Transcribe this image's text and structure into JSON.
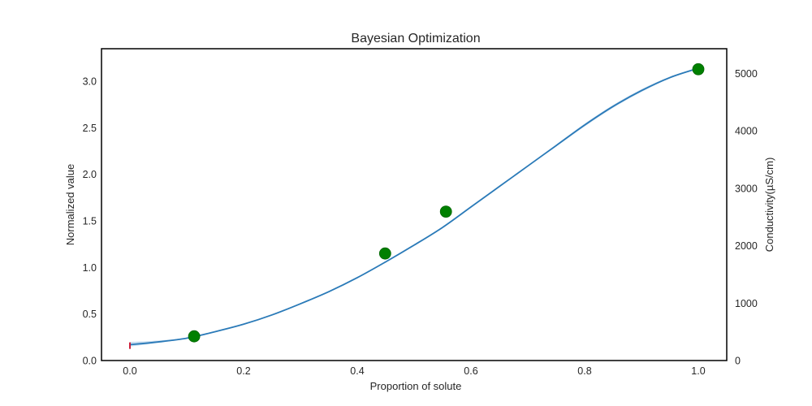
{
  "chart_data": {
    "type": "line",
    "title": "Bayesian Optimization",
    "xlabel": "Proportion of solute",
    "ylabel": "Normalized value",
    "y2label": "Conductivity(µS/cm)",
    "xlim": [
      -0.05,
      1.05
    ],
    "ylim": [
      0,
      3.35
    ],
    "y2lim": [
      0,
      5430
    ],
    "x_ticks": [
      0.0,
      0.2,
      0.4,
      0.6,
      0.8,
      1.0
    ],
    "x_tick_labels": [
      "0.0",
      "0.2",
      "0.4",
      "0.6",
      "0.8",
      "1.0"
    ],
    "y_ticks": [
      0.0,
      0.5,
      1.0,
      1.5,
      2.0,
      2.5,
      3.0
    ],
    "y_tick_labels": [
      "0.0",
      "0.5",
      "1.0",
      "1.5",
      "2.0",
      "2.5",
      "3.0"
    ],
    "y2_ticks": [
      0,
      1000,
      2000,
      3000,
      4000,
      5000
    ],
    "y2_tick_labels": [
      "0",
      "1000",
      "2000",
      "3000",
      "4000",
      "5000"
    ],
    "grid": false,
    "series": [
      {
        "kind": "mean",
        "color": "#2a7ab8",
        "x": [
          0.0,
          0.05,
          0.1,
          0.15,
          0.2,
          0.25,
          0.3,
          0.35,
          0.4,
          0.45,
          0.5,
          0.55,
          0.6,
          0.65,
          0.7,
          0.75,
          0.8,
          0.85,
          0.9,
          0.95,
          1.0
        ],
        "y": [
          0.17,
          0.2,
          0.24,
          0.31,
          0.39,
          0.49,
          0.61,
          0.74,
          0.89,
          1.06,
          1.24,
          1.43,
          1.65,
          1.87,
          2.09,
          2.31,
          2.53,
          2.73,
          2.9,
          3.04,
          3.14
        ]
      },
      {
        "kind": "confidence-band",
        "color": "#a6c8e6",
        "x": [
          0.0,
          0.05,
          0.1,
          0.15,
          0.2,
          0.25,
          0.3,
          0.35,
          0.4,
          0.45,
          0.5,
          0.55,
          0.6,
          0.65,
          0.7,
          0.75,
          0.8,
          0.85,
          0.9,
          0.95,
          1.0
        ],
        "lower": [
          0.15,
          0.19,
          0.235,
          0.305,
          0.385,
          0.485,
          0.605,
          0.735,
          0.885,
          1.055,
          1.235,
          1.425,
          1.645,
          1.865,
          2.085,
          2.3,
          2.515,
          2.715,
          2.885,
          3.03,
          3.135
        ],
        "upper": [
          0.2,
          0.215,
          0.245,
          0.315,
          0.395,
          0.495,
          0.615,
          0.745,
          0.895,
          1.065,
          1.245,
          1.435,
          1.655,
          1.875,
          2.095,
          2.32,
          2.545,
          2.745,
          2.915,
          3.05,
          3.145
        ]
      },
      {
        "kind": "observations",
        "color": "#008000",
        "x": [
          0.113,
          0.449,
          0.556,
          1.0
        ],
        "y": [
          0.26,
          1.15,
          1.6,
          3.13
        ]
      }
    ],
    "annotations": [
      {
        "kind": "marker",
        "color": "#cc1f3a",
        "x": 0.0,
        "y": 0.16
      }
    ]
  }
}
